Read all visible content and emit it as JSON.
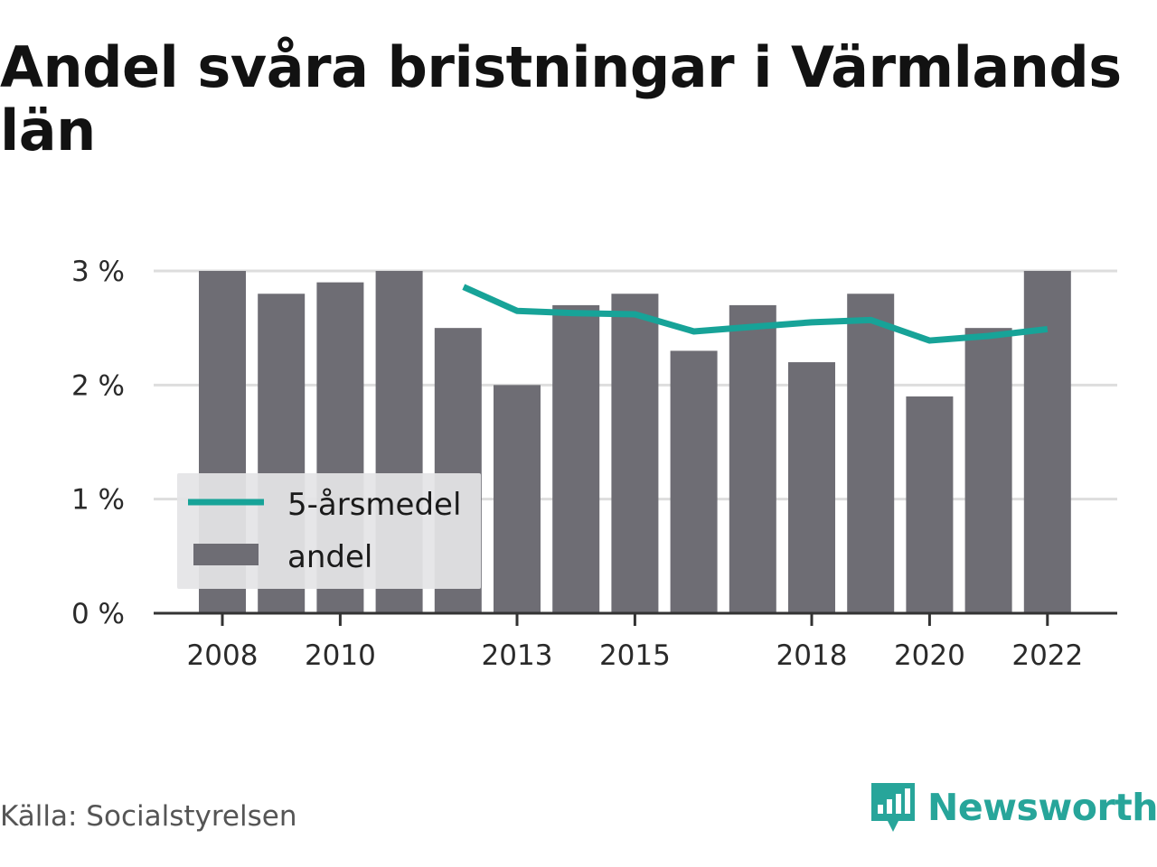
{
  "title": "Andel svåra bristningar i Värmlands län",
  "source": "Källa: Socialstyrelsen",
  "brand": "Newsworthy",
  "colors": {
    "bar": "#6e6d74",
    "line": "#17a398",
    "grid": "#dddddd",
    "axis": "#333333",
    "legend_bg": "#e4e4e6"
  },
  "chart_data": {
    "type": "bar",
    "x": [
      2008,
      2009,
      2010,
      2011,
      2012,
      2013,
      2014,
      2015,
      2016,
      2017,
      2018,
      2019,
      2020,
      2021,
      2022
    ],
    "x_tick_labels": [
      "2008",
      "2010",
      "2013",
      "2015",
      "2018",
      "2020",
      "2022"
    ],
    "y_tick_labels": [
      "0 %",
      "1 %",
      "2 %",
      "3 %"
    ],
    "ylim": [
      0,
      3
    ],
    "grid": true,
    "legend_position": "bottom-left",
    "series": [
      {
        "name": "andel",
        "kind": "bar",
        "values": [
          3.0,
          2.8,
          2.9,
          3.0,
          2.5,
          2.0,
          2.7,
          2.8,
          2.3,
          2.7,
          2.2,
          2.8,
          1.9,
          2.5,
          3.0
        ]
      },
      {
        "name": "5-årsmedel",
        "kind": "line",
        "values": [
          null,
          null,
          null,
          null,
          2.86,
          2.65,
          2.63,
          2.62,
          2.47,
          2.51,
          2.55,
          2.57,
          2.39,
          2.43,
          2.49
        ]
      }
    ]
  }
}
